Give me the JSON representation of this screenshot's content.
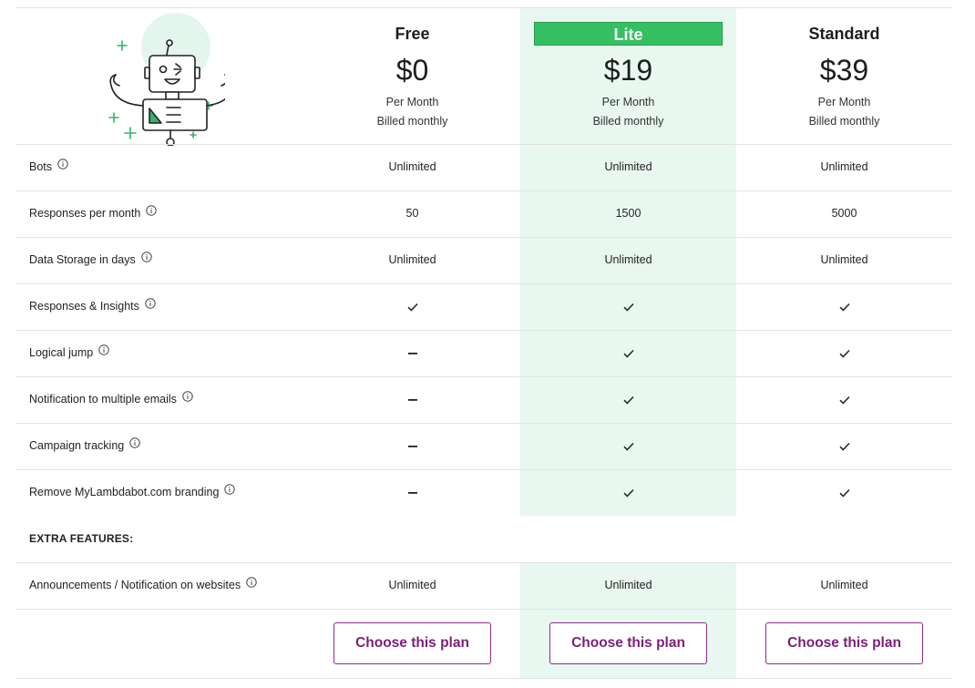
{
  "plans": [
    {
      "name": "Free",
      "price": "$0",
      "period": "Per Month",
      "billing": "Billed monthly",
      "cta": "Choose this plan"
    },
    {
      "name": "Lite",
      "price": "$19",
      "period": "Per Month",
      "billing": "Billed monthly",
      "cta": "Choose this plan"
    },
    {
      "name": "Standard",
      "price": "$39",
      "period": "Per Month",
      "billing": "Billed monthly",
      "cta": "Choose this plan"
    }
  ],
  "features": [
    {
      "label": "Bots",
      "values": [
        "Unlimited",
        "Unlimited",
        "Unlimited"
      ]
    },
    {
      "label": "Responses per month",
      "values": [
        "50",
        "1500",
        "5000"
      ]
    },
    {
      "label": "Data Storage in days",
      "values": [
        "Unlimited",
        "Unlimited",
        "Unlimited"
      ]
    },
    {
      "label": "Responses & Insights",
      "values": [
        "check",
        "check",
        "check"
      ]
    },
    {
      "label": "Logical jump",
      "values": [
        "dash",
        "check",
        "check"
      ]
    },
    {
      "label": "Notification to multiple emails",
      "values": [
        "dash",
        "check",
        "check"
      ]
    },
    {
      "label": "Campaign tracking",
      "values": [
        "dash",
        "check",
        "check"
      ]
    },
    {
      "label": "Remove MyLambdabot.com branding",
      "values": [
        "dash",
        "check",
        "check"
      ]
    }
  ],
  "extra_section": {
    "title": "EXTRA FEATURES:"
  },
  "extra_features": [
    {
      "label": "Announcements / Notification on websites",
      "values": [
        "Unlimited",
        "Unlimited",
        "Unlimited"
      ]
    }
  ],
  "colors": {
    "lite_header": "#35c064",
    "lite_column": "#e8f7ef",
    "button": "#7b1f7b"
  },
  "icons": {
    "info": "info-circle-icon",
    "check": "checkmark-icon",
    "dash": "dash-icon",
    "hero": "robot-illustration"
  }
}
